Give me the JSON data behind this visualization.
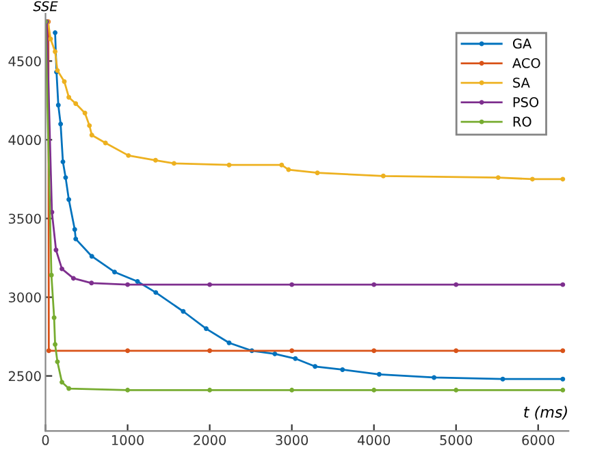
{
  "chart_data": {
    "type": "line",
    "xlabel": "t (ms)",
    "ylabel": "SSE",
    "xlim": [
      0,
      6370
    ],
    "ylim": [
      2150,
      4800
    ],
    "xticks": [
      0,
      1000,
      2000,
      3000,
      4000,
      5000,
      6000
    ],
    "yticks": [
      2500,
      3000,
      3500,
      4000,
      4500
    ],
    "grid": false,
    "legend": "top right",
    "marker": "circle",
    "line_style": "solid",
    "series": [
      {
        "name": "GA",
        "color": "#0072bd",
        "x": [
          117,
          134,
          156,
          184,
          212,
          245,
          284,
          356,
          368,
          564,
          841,
          1120,
          1343,
          1677,
          1957,
          2236,
          2513,
          2793,
          3043,
          3283,
          3617,
          4064,
          4732,
          5569,
          6300
        ],
        "values": [
          4680,
          4430,
          4220,
          4100,
          3860,
          3760,
          3620,
          3430,
          3370,
          3260,
          3160,
          3100,
          3030,
          2910,
          2800,
          2710,
          2660,
          2640,
          2610,
          2560,
          2540,
          2510,
          2490,
          2480,
          2480
        ]
      },
      {
        "name": "ACO",
        "color": "#d95319",
        "x": [
          35,
          40,
          1000,
          2000,
          3000,
          4000,
          5000,
          6300
        ],
        "values": [
          4750,
          2660,
          2660,
          2660,
          2660,
          2660,
          2660,
          2660
        ]
      },
      {
        "name": "SA",
        "color": "#edb120",
        "x": [
          30,
          62,
          117,
          145,
          229,
          284,
          368,
          480,
          535,
          564,
          730,
          1010,
          1340,
          1565,
          2236,
          2876,
          2960,
          3311,
          4114,
          5513,
          5930,
          6300
        ],
        "values": [
          4750,
          4640,
          4560,
          4440,
          4370,
          4270,
          4230,
          4170,
          4090,
          4030,
          3980,
          3900,
          3870,
          3850,
          3840,
          3840,
          3810,
          3790,
          3770,
          3760,
          3750,
          3750
        ]
      },
      {
        "name": "PSO",
        "color": "#7e2f8e",
        "x": [
          15,
          78,
          128,
          200,
          340,
          560,
          1000,
          2000,
          3000,
          4000,
          5000,
          6300
        ],
        "values": [
          4750,
          3540,
          3300,
          3180,
          3120,
          3090,
          3080,
          3080,
          3080,
          3080,
          3080,
          3080
        ]
      },
      {
        "name": "RO",
        "color": "#77ac30",
        "x": [
          0,
          72,
          105,
          117,
          145,
          200,
          284,
          1000,
          2000,
          3000,
          4000,
          5000,
          6300
        ],
        "values": [
          4750,
          3140,
          2870,
          2700,
          2590,
          2460,
          2420,
          2410,
          2410,
          2410,
          2410,
          2410,
          2410
        ]
      }
    ]
  }
}
